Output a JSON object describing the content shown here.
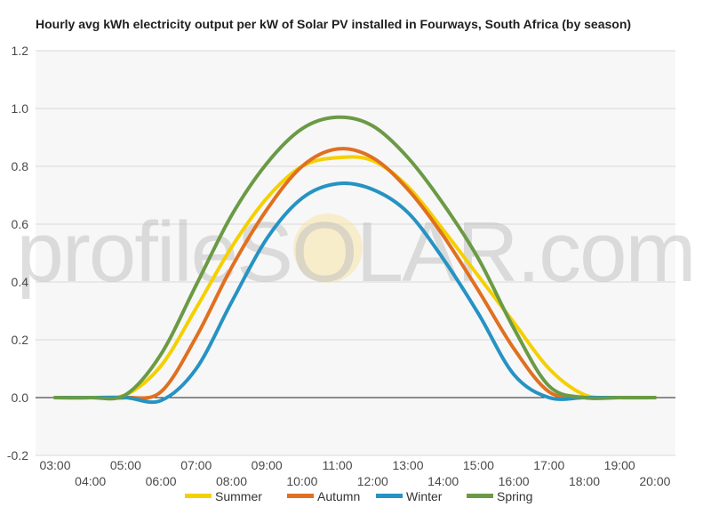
{
  "chart_data": {
    "type": "line",
    "title": "Hourly avg kWh electricity output per kW of Solar PV installed in Fourways, South Africa (by season)",
    "watermark": "profileSOLAR.com",
    "xlabel": "",
    "ylabel": "",
    "ylim": [
      -0.2,
      1.2
    ],
    "yticks": [
      "1.2",
      "1.0",
      "0.8",
      "0.6",
      "0.4",
      "0.2",
      "0.0",
      "-0.2"
    ],
    "ytick_values": [
      1.2,
      1.0,
      0.8,
      0.6,
      0.4,
      0.2,
      0.0,
      -0.2
    ],
    "categories": [
      "03:00",
      "04:00",
      "05:00",
      "06:00",
      "07:00",
      "08:00",
      "09:00",
      "10:00",
      "11:00",
      "12:00",
      "13:00",
      "14:00",
      "15:00",
      "16:00",
      "17:00",
      "18:00",
      "19:00",
      "20:00"
    ],
    "grid": true,
    "legend_position": "bottom",
    "series": [
      {
        "name": "Summer",
        "color": "#f5d000",
        "values": [
          0,
          0,
          0.01,
          0.11,
          0.31,
          0.52,
          0.69,
          0.8,
          0.83,
          0.82,
          0.73,
          0.58,
          0.42,
          0.26,
          0.1,
          0.01,
          0,
          0
        ]
      },
      {
        "name": "Autumn",
        "color": "#e07021",
        "values": [
          0,
          0,
          0,
          0.02,
          0.21,
          0.45,
          0.65,
          0.8,
          0.86,
          0.83,
          0.72,
          0.56,
          0.37,
          0.17,
          0.02,
          0,
          0,
          0
        ]
      },
      {
        "name": "Winter",
        "color": "#2593c3",
        "values": [
          0,
          0,
          0,
          -0.01,
          0.1,
          0.33,
          0.55,
          0.69,
          0.74,
          0.72,
          0.64,
          0.48,
          0.29,
          0.08,
          0,
          0,
          0,
          0
        ]
      },
      {
        "name": "Spring",
        "color": "#6b9a45",
        "values": [
          0,
          0,
          0.01,
          0.15,
          0.39,
          0.63,
          0.81,
          0.93,
          0.97,
          0.94,
          0.83,
          0.67,
          0.48,
          0.24,
          0.04,
          0,
          0,
          0
        ]
      }
    ]
  }
}
